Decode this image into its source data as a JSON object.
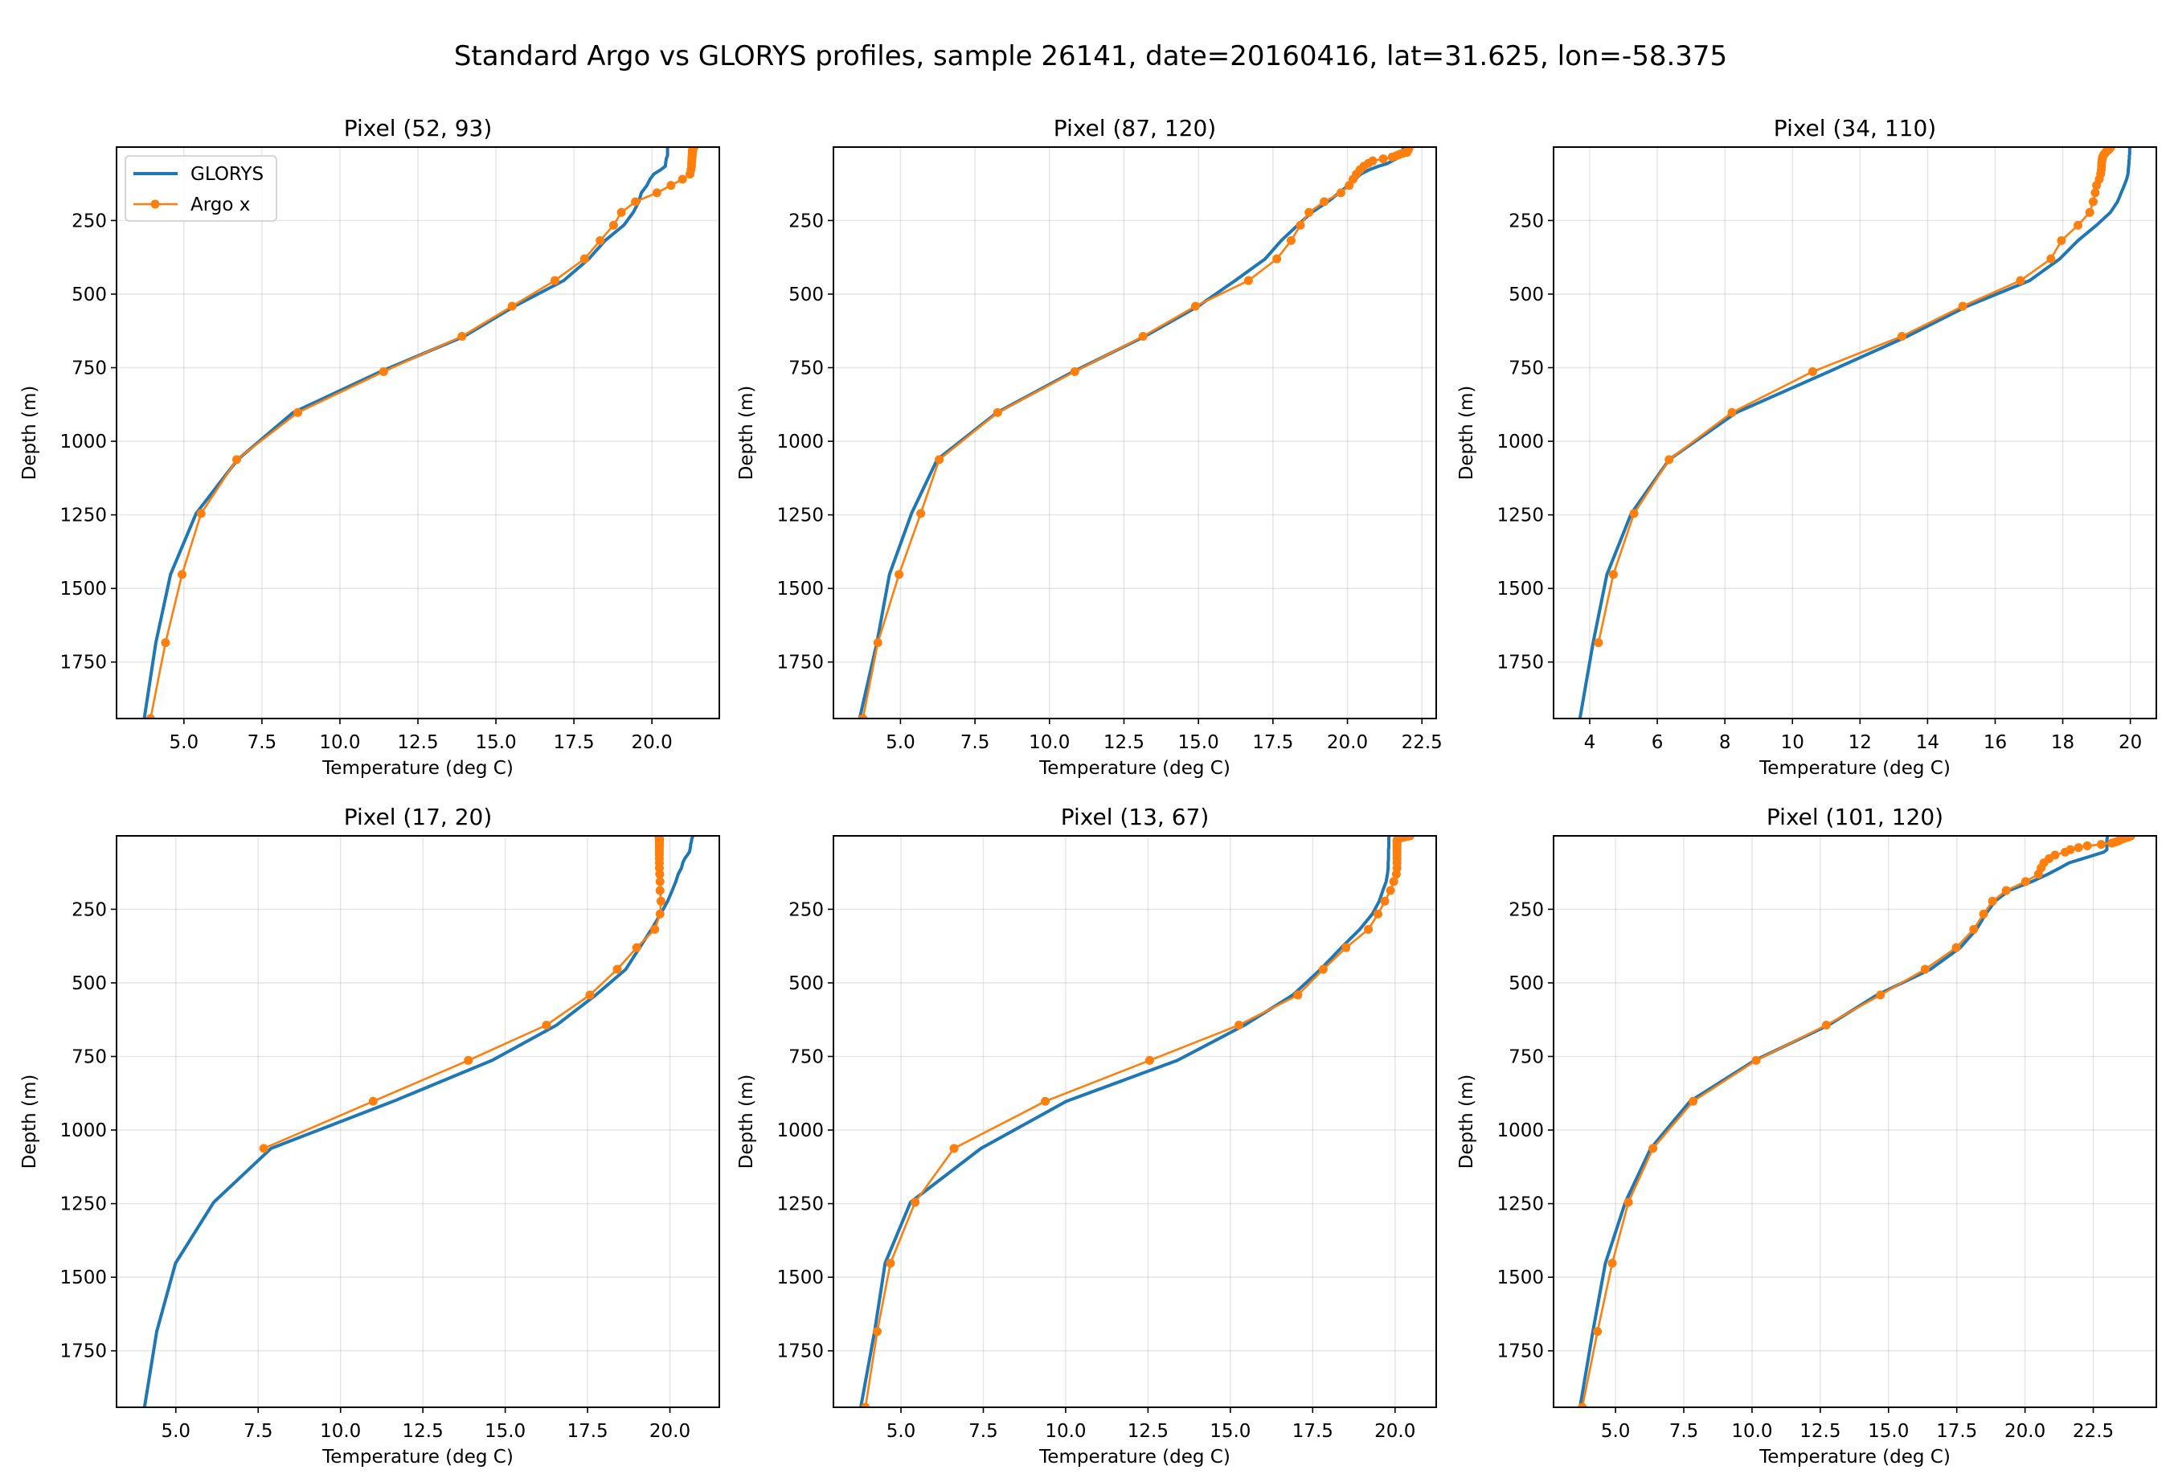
{
  "suptitle": "Standard Argo vs GLORYS profiles, sample 26141, date=20160416, lat=31.625, lon=-58.375",
  "colors": {
    "GLORYS": "#1f77b4",
    "Argo x": "#ff7f0e"
  },
  "chart_data": [
    {
      "type": "line",
      "title": "Pixel (52, 93)",
      "xlabel": "Temperature (deg C)",
      "ylabel": "Depth (m)",
      "xlim": [
        2.84,
        22.16
      ],
      "ylim": [
        1941.9,
        0.49
      ],
      "y_inverted": true,
      "grid": true,
      "legend": "upper left",
      "xticks": [
        5,
        7.5,
        10,
        12.5,
        15,
        17.5,
        20
      ],
      "xtick_labels": [
        "5.0",
        "7.5",
        "10.0",
        "12.5",
        "15.0",
        "17.5",
        "20.0"
      ],
      "yticks": [
        250,
        500,
        750,
        1000,
        1250,
        1500,
        1750
      ],
      "ytick_labels": [
        "250",
        "500",
        "750",
        "1000",
        "1250",
        "1500",
        "1750"
      ],
      "depth": [
        0.49,
        1.54,
        2.65,
        3.82,
        5.08,
        6.44,
        7.93,
        9.57,
        11.4,
        13.47,
        15.81,
        18.5,
        21.6,
        25.2,
        29.4,
        34.4,
        40.3,
        47.4,
        55.8,
        65.8,
        77.9,
        92.3,
        109.7,
        130.7,
        155.9,
        186.1,
        222.5,
        266.0,
        318.1,
        380.2,
        453.9,
        541.1,
        643.6,
        763.3,
        902.3,
        1062.4,
        1245.3,
        1452.3,
        1684.3,
        1941.9
      ],
      "series": [
        {
          "name": "GLORYS",
          "marker": false,
          "values": [
            20.5,
            20.5,
            20.5,
            20.5,
            20.5,
            20.5,
            20.5,
            20.5,
            20.5,
            20.5,
            20.5,
            20.5,
            20.5,
            20.5,
            20.5,
            20.48,
            20.46,
            20.45,
            20.44,
            20.43,
            20.28,
            20.06,
            19.94,
            19.84,
            19.66,
            19.58,
            19.4,
            19.1,
            18.5,
            17.98,
            17.17,
            15.6,
            13.98,
            11.3,
            8.5,
            6.72,
            5.39,
            4.57,
            4.1,
            3.73
          ]
        },
        {
          "name": "Argo x",
          "marker": true,
          "values": [
            21.35,
            21.34,
            21.33,
            21.32,
            21.32,
            21.31,
            21.31,
            21.3,
            21.3,
            21.3,
            21.3,
            21.3,
            21.3,
            21.29,
            21.29,
            21.29,
            21.28,
            21.28,
            21.27,
            21.27,
            21.25,
            21.22,
            20.98,
            20.61,
            20.16,
            19.47,
            19.02,
            18.77,
            18.34,
            17.84,
            16.89,
            15.52,
            13.91,
            11.4,
            8.65,
            6.69,
            5.55,
            4.94,
            4.41,
            3.93
          ]
        }
      ]
    },
    {
      "type": "line",
      "title": "Pixel (87, 120)",
      "xlabel": "Temperature (deg C)",
      "ylabel": "Depth (m)",
      "xlim": [
        2.75,
        22.98
      ],
      "ylim": [
        1941.9,
        0.49
      ],
      "y_inverted": true,
      "grid": true,
      "xticks": [
        5,
        7.5,
        10,
        12.5,
        15,
        17.5,
        20,
        22.5
      ],
      "xtick_labels": [
        "5.0",
        "7.5",
        "10.0",
        "12.5",
        "15.0",
        "17.5",
        "20.0",
        "22.5"
      ],
      "yticks": [
        250,
        500,
        750,
        1000,
        1250,
        1500,
        1750
      ],
      "ytick_labels": [
        "250",
        "500",
        "750",
        "1000",
        "1250",
        "1500",
        "1750"
      ],
      "depth": [
        0.49,
        1.54,
        2.65,
        3.82,
        5.08,
        6.44,
        7.93,
        9.57,
        11.4,
        13.47,
        15.81,
        18.5,
        21.6,
        25.2,
        29.4,
        34.4,
        40.3,
        47.4,
        55.8,
        65.8,
        77.9,
        92.3,
        109.7,
        130.7,
        155.9,
        186.1,
        222.5,
        266.0,
        318.1,
        380.2,
        453.9,
        541.1,
        643.6,
        763.3,
        902.3,
        1062.4,
        1245.3,
        1452.3,
        1684.3,
        1941.9
      ],
      "series": [
        {
          "name": "GLORYS",
          "marker": false,
          "values": [
            21.9,
            21.9,
            21.89,
            21.88,
            21.87,
            21.86,
            21.86,
            21.85,
            21.85,
            21.85,
            21.85,
            21.85,
            21.84,
            21.82,
            21.8,
            21.74,
            21.63,
            21.5,
            21.35,
            21.04,
            20.73,
            20.45,
            20.26,
            20.03,
            19.72,
            19.34,
            18.8,
            18.33,
            17.78,
            17.24,
            16.23,
            14.99,
            13.2,
            10.8,
            8.24,
            6.23,
            5.37,
            4.63,
            4.21,
            3.63
          ]
        },
        {
          "name": "Argo x",
          "marker": true,
          "values": [
            22.08,
            22.07,
            22.06,
            22.05,
            22.05,
            22.05,
            22.05,
            22.04,
            22.03,
            22.02,
            22.01,
            22.0,
            21.85,
            21.75,
            21.65,
            21.5,
            21.2,
            20.85,
            20.7,
            20.55,
            20.42,
            20.3,
            20.19,
            20.06,
            19.78,
            19.22,
            18.71,
            18.42,
            18.11,
            17.63,
            16.68,
            14.9,
            13.14,
            10.85,
            8.26,
            6.3,
            5.68,
            4.95,
            4.24,
            3.74
          ]
        }
      ]
    },
    {
      "type": "line",
      "title": "Pixel (34, 110)",
      "xlabel": "Temperature (deg C)",
      "ylabel": "Depth (m)",
      "xlim": [
        2.93,
        20.77
      ],
      "ylim": [
        1941.9,
        0.49
      ],
      "y_inverted": true,
      "grid": true,
      "xticks": [
        4,
        6,
        8,
        10,
        12,
        14,
        16,
        18,
        20
      ],
      "xtick_labels": [
        "4",
        "6",
        "8",
        "10",
        "12",
        "14",
        "16",
        "18",
        "20"
      ],
      "yticks": [
        250,
        500,
        750,
        1000,
        1250,
        1500,
        1750
      ],
      "ytick_labels": [
        "250",
        "500",
        "750",
        "1000",
        "1250",
        "1500",
        "1750"
      ],
      "depth": [
        0.49,
        1.54,
        2.65,
        3.82,
        5.08,
        6.44,
        7.93,
        9.57,
        11.4,
        13.47,
        15.81,
        18.5,
        21.6,
        25.2,
        29.4,
        34.4,
        40.3,
        47.4,
        55.8,
        65.8,
        77.9,
        92.3,
        109.7,
        130.7,
        155.9,
        186.1,
        222.5,
        266.0,
        318.1,
        380.2,
        453.9,
        541.1,
        643.6,
        763.3,
        902.3,
        1062.4,
        1245.3,
        1452.3,
        1684.3,
        1941.9
      ],
      "series": [
        {
          "name": "GLORYS",
          "marker": false,
          "values": [
            19.99,
            19.99,
            19.99,
            19.99,
            19.98,
            19.98,
            19.98,
            19.98,
            19.98,
            19.98,
            19.98,
            19.98,
            19.98,
            19.98,
            19.97,
            19.97,
            19.97,
            19.96,
            19.96,
            19.95,
            19.94,
            19.93,
            19.89,
            19.82,
            19.73,
            19.62,
            19.41,
            19.0,
            18.45,
            17.91,
            17.02,
            15.17,
            13.4,
            11.08,
            8.34,
            6.35,
            5.23,
            4.51,
            4.1,
            3.71
          ]
        },
        {
          "name": "Argo x",
          "marker": true,
          "values": [
            19.42,
            19.41,
            19.4,
            19.4,
            19.39,
            19.38,
            19.37,
            19.35,
            19.33,
            19.31,
            19.29,
            19.27,
            19.25,
            19.22,
            19.2,
            19.18,
            19.17,
            19.16,
            19.15,
            19.15,
            19.14,
            19.12,
            19.08,
            19.0,
            18.96,
            18.9,
            18.8,
            18.45,
            17.96,
            17.65,
            16.75,
            15.04,
            13.24,
            10.6,
            8.21,
            6.35,
            5.31,
            4.7,
            4.26,
            null
          ]
        }
      ]
    },
    {
      "type": "line",
      "title": "Pixel (17, 20)",
      "xlabel": "Temperature (deg C)",
      "ylabel": "Depth (m)",
      "xlim": [
        3.2,
        21.5
      ],
      "ylim": [
        1941.9,
        0.49
      ],
      "y_inverted": true,
      "grid": true,
      "xticks": [
        5,
        7.5,
        10,
        12.5,
        15,
        17.5,
        20
      ],
      "xtick_labels": [
        "5.0",
        "7.5",
        "10.0",
        "12.5",
        "15.0",
        "17.5",
        "20.0"
      ],
      "yticks": [
        250,
        500,
        750,
        1000,
        1250,
        1500,
        1750
      ],
      "ytick_labels": [
        "250",
        "500",
        "750",
        "1000",
        "1250",
        "1500",
        "1750"
      ],
      "depth": [
        0.49,
        1.54,
        2.65,
        3.82,
        5.08,
        6.44,
        7.93,
        9.57,
        11.4,
        13.47,
        15.81,
        18.5,
        21.6,
        25.2,
        29.4,
        34.4,
        40.3,
        47.4,
        55.8,
        65.8,
        77.9,
        92.3,
        109.7,
        130.7,
        155.9,
        186.1,
        222.5,
        266.0,
        318.1,
        380.2,
        453.9,
        541.1,
        643.6,
        763.3,
        902.3,
        1062.4,
        1245.3,
        1452.3,
        1684.3,
        1941.9
      ],
      "series": [
        {
          "name": "GLORYS",
          "marker": false,
          "values": [
            20.7,
            20.7,
            20.69,
            20.69,
            20.68,
            20.68,
            20.67,
            20.67,
            20.66,
            20.66,
            20.66,
            20.65,
            20.65,
            20.64,
            20.63,
            20.63,
            20.62,
            20.61,
            20.59,
            20.53,
            20.45,
            20.39,
            20.35,
            20.25,
            20.18,
            20.07,
            19.93,
            19.72,
            19.44,
            19.08,
            18.66,
            17.75,
            16.56,
            14.6,
            11.6,
            7.89,
            6.15,
            4.99,
            4.42,
            4.05
          ]
        },
        {
          "name": "Argo x",
          "marker": true,
          "values": [
            19.66,
            19.66,
            19.67,
            19.67,
            19.67,
            19.67,
            19.68,
            19.68,
            19.68,
            19.68,
            19.68,
            19.68,
            19.68,
            19.68,
            19.68,
            19.68,
            19.68,
            19.68,
            19.68,
            19.68,
            19.68,
            19.68,
            19.68,
            19.69,
            19.7,
            19.7,
            19.73,
            19.7,
            19.54,
            18.99,
            18.4,
            17.57,
            16.25,
            13.88,
            10.99,
            7.67,
            null,
            null,
            null,
            null
          ]
        }
      ]
    },
    {
      "type": "line",
      "title": "Pixel (13, 67)",
      "xlabel": "Temperature (deg C)",
      "ylabel": "Depth (m)",
      "xlim": [
        2.95,
        21.25
      ],
      "ylim": [
        1941.9,
        0.49
      ],
      "y_inverted": true,
      "grid": true,
      "xticks": [
        5,
        7.5,
        10,
        12.5,
        15,
        17.5,
        20
      ],
      "xtick_labels": [
        "5.0",
        "7.5",
        "10.0",
        "12.5",
        "15.0",
        "17.5",
        "20.0"
      ],
      "yticks": [
        250,
        500,
        750,
        1000,
        1250,
        1500,
        1750
      ],
      "ytick_labels": [
        "250",
        "500",
        "750",
        "1000",
        "1250",
        "1500",
        "1750"
      ],
      "depth": [
        0.49,
        1.54,
        2.65,
        3.82,
        5.08,
        6.44,
        7.93,
        9.57,
        11.4,
        13.47,
        15.81,
        18.5,
        21.6,
        25.2,
        29.4,
        34.4,
        40.3,
        47.4,
        55.8,
        65.8,
        77.9,
        92.3,
        109.7,
        130.7,
        155.9,
        186.1,
        222.5,
        266.0,
        318.1,
        380.2,
        453.9,
        541.1,
        643.6,
        763.3,
        902.3,
        1062.4,
        1245.3,
        1452.3,
        1684.3,
        1941.9
      ],
      "series": [
        {
          "name": "GLORYS",
          "marker": false,
          "values": [
            19.81,
            19.81,
            19.81,
            19.81,
            19.81,
            19.81,
            19.81,
            19.81,
            19.81,
            19.81,
            19.81,
            19.81,
            19.81,
            19.81,
            19.81,
            19.81,
            19.81,
            19.8,
            19.8,
            19.8,
            19.8,
            19.79,
            19.79,
            19.77,
            19.73,
            19.63,
            19.52,
            19.31,
            18.93,
            18.37,
            17.74,
            16.9,
            15.43,
            13.39,
            10.02,
            7.43,
            5.29,
            4.52,
            4.2,
            3.78
          ]
        },
        {
          "name": "Argo x",
          "marker": true,
          "values": [
            20.45,
            20.4,
            20.35,
            20.3,
            20.25,
            20.2,
            20.15,
            20.1,
            20.08,
            20.07,
            20.06,
            20.06,
            20.06,
            20.06,
            20.06,
            20.06,
            20.06,
            20.06,
            20.06,
            20.06,
            20.06,
            20.06,
            20.06,
            20.04,
            19.96,
            19.86,
            19.69,
            19.48,
            19.19,
            18.51,
            17.82,
            17.05,
            15.26,
            12.55,
            9.38,
            6.61,
            5.43,
            4.68,
            4.28,
            3.92
          ]
        }
      ]
    },
    {
      "type": "line",
      "title": "Pixel (101, 120)",
      "xlabel": "Temperature (deg C)",
      "ylabel": "Depth (m)",
      "xlim": [
        2.73,
        24.81
      ],
      "ylim": [
        1941.9,
        0.49
      ],
      "y_inverted": true,
      "grid": true,
      "xticks": [
        5,
        7.5,
        10,
        12.5,
        15,
        17.5,
        20,
        22.5
      ],
      "xtick_labels": [
        "5.0",
        "7.5",
        "10.0",
        "12.5",
        "15.0",
        "17.5",
        "20.0",
        "22.5"
      ],
      "yticks": [
        250,
        500,
        750,
        1000,
        1250,
        1500,
        1750
      ],
      "ytick_labels": [
        "250",
        "500",
        "750",
        "1000",
        "1250",
        "1500",
        "1750"
      ],
      "depth": [
        0.49,
        1.54,
        2.65,
        3.82,
        5.08,
        6.44,
        7.93,
        9.57,
        11.4,
        13.47,
        15.81,
        18.5,
        21.6,
        25.2,
        29.4,
        34.4,
        40.3,
        47.4,
        55.8,
        65.8,
        77.9,
        92.3,
        109.7,
        130.7,
        155.9,
        186.1,
        222.5,
        266.0,
        318.1,
        380.2,
        453.9,
        541.1,
        643.6,
        763.3,
        902.3,
        1062.4,
        1245.3,
        1452.3,
        1684.3,
        1941.9
      ],
      "series": [
        {
          "name": "GLORYS",
          "marker": false,
          "values": [
            23.02,
            23.02,
            23.02,
            23.01,
            23.01,
            23.01,
            23.01,
            23.01,
            23.0,
            23.0,
            23.0,
            23.0,
            23.0,
            23.0,
            23.0,
            23.0,
            23.0,
            23.0,
            22.88,
            22.54,
            22.12,
            21.61,
            21.27,
            20.84,
            20.25,
            19.41,
            18.9,
            18.56,
            18.22,
            17.63,
            16.53,
            14.58,
            12.8,
            10.1,
            7.73,
            6.29,
            5.36,
            4.63,
            4.17,
            3.7
          ]
        },
        {
          "name": "Argo x",
          "marker": true,
          "values": [
            23.88,
            23.85,
            23.82,
            23.8,
            23.75,
            23.7,
            23.65,
            23.6,
            23.55,
            23.5,
            23.45,
            23.4,
            23.3,
            23.18,
            22.79,
            22.28,
            21.96,
            21.66,
            21.47,
            21.1,
            20.88,
            20.69,
            20.59,
            20.49,
            20.02,
            19.31,
            18.81,
            18.48,
            18.12,
            17.48,
            16.34,
            14.7,
            12.72,
            10.15,
            7.84,
            6.37,
            5.47,
            4.88,
            4.34,
            3.78
          ]
        }
      ]
    }
  ]
}
